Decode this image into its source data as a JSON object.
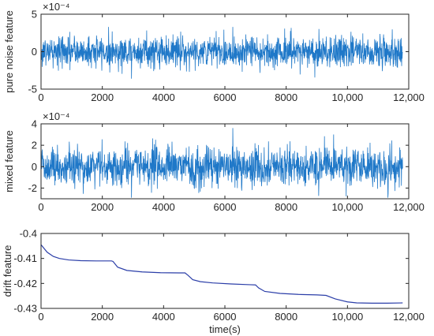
{
  "chart_data": [
    {
      "type": "line",
      "ylabel": "pure noise feature",
      "xlabel": "",
      "exponent_label": "×10⁻⁴",
      "xlim": [
        0,
        12000
      ],
      "ylim": [
        -5,
        5
      ],
      "yscale_factor": 0.0001,
      "x_ticks": [
        0,
        2000,
        4000,
        6000,
        8000,
        10000,
        12000
      ],
      "x_tick_labels": [
        "0",
        "2000",
        "4000",
        "6000",
        "8000",
        "10,000",
        "12,000"
      ],
      "y_ticks": [
        -5,
        0,
        5
      ],
      "y_tick_labels": [
        "-5",
        "0",
        "5"
      ],
      "x_range": [
        0,
        11800
      ],
      "noise_envelope": [
        -2.2,
        2.2
      ],
      "noise_peaks": [
        -3.6,
        3.3
      ],
      "color": "#1f78c8"
    },
    {
      "type": "line",
      "ylabel": "mixed feature",
      "xlabel": "",
      "exponent_label": "×10⁻⁴",
      "xlim": [
        0,
        12000
      ],
      "ylim": [
        -3,
        4
      ],
      "yscale_factor": 0.0001,
      "x_ticks": [
        0,
        2000,
        4000,
        6000,
        8000,
        10000,
        12000
      ],
      "x_tick_labels": [
        "0",
        "2000",
        "4000",
        "6000",
        "8000",
        "10,000",
        "12,000"
      ],
      "y_ticks": [
        -2,
        0,
        2,
        4
      ],
      "y_tick_labels": [
        "-2",
        "0",
        "2",
        "4"
      ],
      "x_range": [
        0,
        11800
      ],
      "noise_envelope": [
        -1.9,
        1.9
      ],
      "noise_peaks": [
        -2.9,
        3.6
      ],
      "color": "#1f78c8"
    },
    {
      "type": "line",
      "ylabel": "drift feature",
      "xlabel": "time(s)",
      "exponent_label": "",
      "xlim": [
        0,
        12000
      ],
      "ylim": [
        -0.43,
        -0.4
      ],
      "yscale_factor": 1,
      "x_ticks": [
        0,
        2000,
        4000,
        6000,
        8000,
        10000,
        12000
      ],
      "x_tick_labels": [
        "0",
        "2000",
        "4000",
        "6000",
        "8000",
        "10,000",
        "12,000"
      ],
      "y_ticks": [
        -0.43,
        -0.42,
        -0.41,
        -0.4
      ],
      "y_tick_labels": [
        "-0.43",
        "-0.42",
        "-0.41",
        "-0.4"
      ],
      "color": "#2b3ea8",
      "series": [
        {
          "x": [
            0,
            200,
            400,
            600,
            900,
            1300,
            1800,
            2300,
            2350,
            2500,
            2800,
            3300,
            3900,
            4500,
            4700,
            4800,
            4950,
            5200,
            5600,
            6200,
            6800,
            7000,
            7100,
            7300,
            7800,
            8400,
            9000,
            9300,
            9600,
            10000,
            10300,
            10800,
            11300,
            11800
          ],
          "y": [
            -0.4045,
            -0.4075,
            -0.4092,
            -0.41,
            -0.4106,
            -0.4109,
            -0.411,
            -0.411,
            -0.4112,
            -0.4135,
            -0.4148,
            -0.4154,
            -0.4157,
            -0.4158,
            -0.4158,
            -0.4168,
            -0.4185,
            -0.4193,
            -0.4198,
            -0.4202,
            -0.4205,
            -0.4206,
            -0.4218,
            -0.4232,
            -0.424,
            -0.4244,
            -0.4246,
            -0.4248,
            -0.4262,
            -0.4274,
            -0.4278,
            -0.4279,
            -0.4279,
            -0.4278
          ]
        }
      ]
    }
  ]
}
